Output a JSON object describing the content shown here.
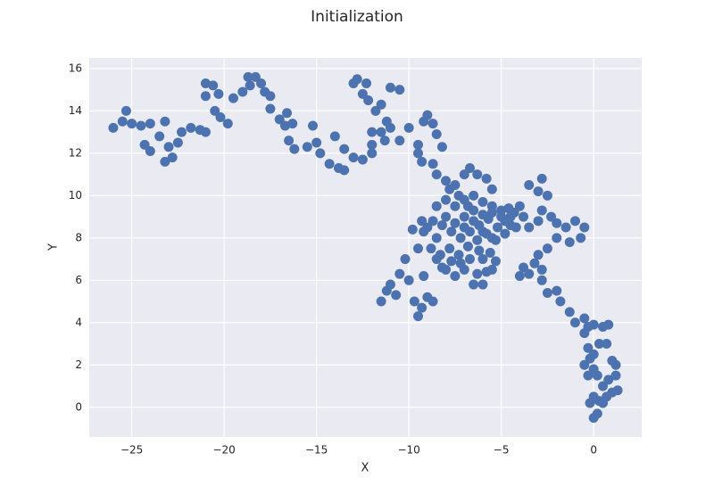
{
  "chart_data": {
    "type": "scatter",
    "title": "Initialization",
    "x_label": "X",
    "y_label": "Y",
    "color": "#4c72b0",
    "grid": true,
    "xlim": [
      -27.3,
      2.6
    ],
    "ylim": [
      -1.4,
      16.5
    ],
    "xticks": [
      {
        "value": -25,
        "label": "−25"
      },
      {
        "value": -20,
        "label": "−20"
      },
      {
        "value": -15,
        "label": "−15"
      },
      {
        "value": -10,
        "label": "−10"
      },
      {
        "value": -5,
        "label": "−5"
      },
      0
    ],
    "yticks": [
      0,
      2,
      4,
      6,
      8,
      10,
      12,
      14,
      16
    ],
    "x": [
      -26,
      -25.5,
      -25.3,
      -25,
      -24.5,
      -24,
      -24.3,
      -24,
      -23.5,
      -23.2,
      -23,
      -23.2,
      -22.8,
      -22.5,
      -22.3,
      -21.8,
      -21.3,
      -21,
      -21,
      -21,
      -20.6,
      -20.3,
      -20.5,
      -20.2,
      -19.8,
      -19.5,
      -19,
      -18.6,
      -18.7,
      -18.3,
      -18,
      -17.8,
      -17.5,
      -17.5,
      -17,
      -16.6,
      -16.7,
      -16.3,
      -16.5,
      -16.2,
      -15.5,
      -15.2,
      -15,
      -14.8,
      -14.3,
      -14,
      -13.8,
      -13.5,
      -13.5,
      -13,
      -12.5,
      -12,
      -12,
      -11.5,
      -11,
      -10.5,
      -10,
      -9.5,
      -9.2,
      -9,
      -8.7,
      -8.5,
      -9.5,
      -9.3,
      -13,
      -12.8,
      -12.3,
      -12.5,
      -12.2,
      -11.8,
      -11.5,
      -11.2,
      -11,
      -10.5,
      -12,
      -11.3,
      -8.7,
      -8.2,
      -8.5,
      -8,
      -7.5,
      -7,
      -6.7,
      -6.3,
      -5.8,
      -5.5,
      -11.5,
      -11.2,
      -11,
      -10.7,
      -10.5,
      -10.2,
      -10,
      -9.7,
      -9.5,
      -9.3,
      -9,
      -8.7,
      -9.2,
      -9.5,
      -9.8,
      -9.3,
      -9,
      -8.5,
      -8,
      -7.5,
      -7,
      -6.5,
      -6,
      -5.5,
      -4.5,
      -4,
      -3.5,
      -3,
      -2.8,
      -2.5,
      -2.3,
      -2,
      -1.5,
      -1,
      -0.5,
      -0.7,
      -1.3,
      -2,
      -2.5,
      -3,
      -3.2,
      -2.8,
      -3.5,
      -4,
      -3.8,
      -2.8,
      -2.5,
      -2,
      -1.8,
      -1.3,
      -1,
      -0.5,
      -0.3,
      0,
      0.5,
      0.8,
      -0.5,
      -0.3,
      0,
      -0.5,
      0,
      0.2,
      0.5,
      0.8,
      1.2,
      1,
      1.2,
      1.3,
      1,
      0.7,
      0.3,
      0,
      -0.2,
      0,
      0.2,
      0.5,
      -0.2,
      -0.3,
      0.3,
      0.7,
      -8.5,
      -8,
      -7.5,
      -7,
      -6.5,
      -6,
      -5.5,
      -5,
      -4.6,
      -4.3,
      -4.8,
      -5.2,
      -5.7,
      -6.2,
      -6.7,
      -7.2,
      -7.7,
      -8.2,
      -8.5,
      -8.8,
      -8.3,
      -7.8,
      -7.3,
      -6.8,
      -6.3,
      -5.8,
      -5.3,
      -4.8,
      -4.5,
      -5,
      -5.5,
      -6,
      -6.5,
      -7,
      -7.5,
      -8,
      -7,
      -6.5,
      -6,
      -5.5,
      -6.2,
      -6.7,
      -7.2,
      -7.7,
      -8.2,
      -6,
      -5.6,
      -5.3,
      -5.8,
      -6.3,
      -4.2,
      -3.8,
      -3.5,
      -3,
      -2.8,
      -7.8,
      -7.3,
      -6.8,
      -9.2,
      -8.7
    ],
    "values": [
      13.2,
      13.5,
      14,
      13.4,
      13.3,
      13.4,
      12.4,
      12.1,
      12.8,
      13.5,
      12.3,
      11.6,
      11.8,
      12.5,
      13,
      13.2,
      13.1,
      13,
      14.7,
      15.3,
      15.2,
      14.8,
      14,
      13.7,
      13.4,
      14.6,
      14.9,
      15.2,
      15.6,
      15.6,
      15.3,
      14.9,
      14.7,
      14.1,
      13.6,
      13.9,
      13.3,
      13.4,
      12.6,
      12.2,
      12.3,
      13.3,
      12.5,
      12,
      11.5,
      12.8,
      11.3,
      11.2,
      12.2,
      11.8,
      11.7,
      12,
      12.4,
      13,
      13.2,
      12.6,
      13.2,
      12.4,
      13.5,
      13.8,
      13.4,
      12.9,
      12,
      11.6,
      15.3,
      15.5,
      15.3,
      14.8,
      14.5,
      14,
      14.3,
      13.5,
      15.1,
      15,
      13,
      12.6,
      11.5,
      12.3,
      11,
      10.7,
      10.5,
      11,
      11.3,
      11,
      10.8,
      10.3,
      5,
      5.5,
      5.8,
      5.3,
      6.3,
      7,
      6,
      5,
      4.3,
      4.7,
      5.2,
      5,
      6.2,
      7.5,
      8.4,
      8.8,
      8.5,
      7,
      6.5,
      6.2,
      6.5,
      5.8,
      5.8,
      6.5,
      9,
      9.5,
      10.5,
      10.2,
      10.8,
      10,
      9,
      8.7,
      8.5,
      8.8,
      8.5,
      8,
      7.8,
      8,
      7.5,
      7.2,
      6.8,
      6.5,
      6.3,
      6.2,
      6.6,
      6,
      5.4,
      5.5,
      5,
      4.5,
      4,
      4.2,
      3.8,
      3.9,
      3.8,
      3.9,
      3.5,
      2.8,
      2.5,
      2,
      1.8,
      1.5,
      1,
      1.3,
      2,
      2.2,
      1.5,
      0.8,
      0.7,
      0.5,
      0.3,
      0.5,
      0.2,
      -0.5,
      -0.3,
      0.2,
      2.3,
      1.5,
      3,
      3,
      9.5,
      9.8,
      9.5,
      9.8,
      10,
      9.7,
      9.5,
      9.3,
      9.4,
      9.2,
      8.8,
      8.5,
      8.9,
      8.6,
      8.3,
      8,
      8.3,
      8.6,
      8,
      7.5,
      7.2,
      7.5,
      7.2,
      7.6,
      7.9,
      8.2,
      7.9,
      8.2,
      8.6,
      9,
      9.2,
      9.1,
      9.3,
      9,
      8.7,
      9,
      8.5,
      8.8,
      8.3,
      8,
      7.4,
      7,
      6.8,
      6.9,
      6.6,
      7,
      7.3,
      6.9,
      6.4,
      6.3,
      8.5,
      9,
      8.5,
      8.8,
      9.3,
      10.3,
      10,
      9.5,
      8.3,
      8.8
    ]
  }
}
